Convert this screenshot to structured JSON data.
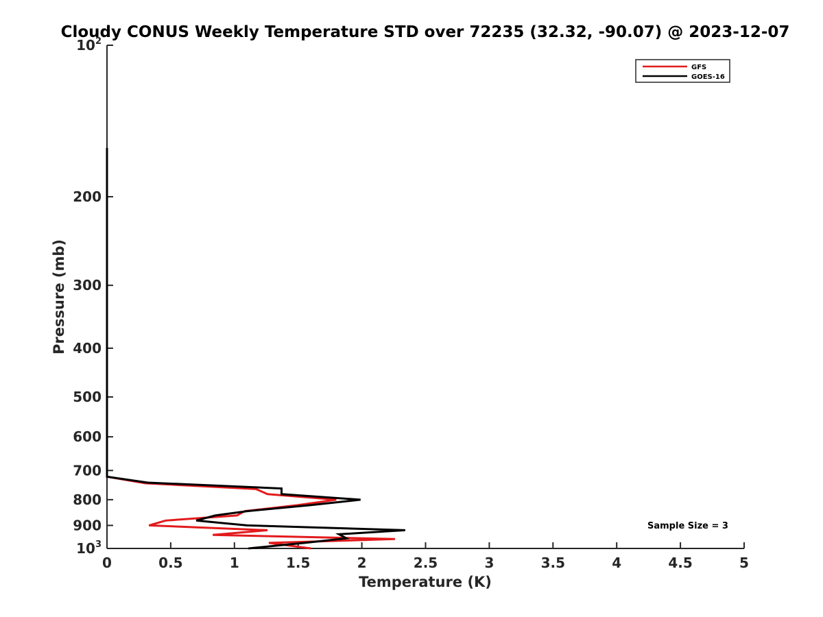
{
  "chart_data": {
    "type": "line",
    "title": "Cloudy CONUS Weekly Temperature STD over 72235 (32.32, -90.07) @ 2023-12-07",
    "xlabel": "Temperature (K)",
    "ylabel": "Pressure (mb)",
    "xlim": [
      0,
      5
    ],
    "ylim": [
      100,
      1000
    ],
    "y_scale": "log",
    "y_reversed": true,
    "grid": false,
    "legend_position": "top-right",
    "x_ticks": [
      {
        "value": 0,
        "label": "0"
      },
      {
        "value": 0.5,
        "label": "0.5"
      },
      {
        "value": 1,
        "label": "1"
      },
      {
        "value": 1.5,
        "label": "1.5"
      },
      {
        "value": 2,
        "label": "2"
      },
      {
        "value": 2.5,
        "label": "2.5"
      },
      {
        "value": 3,
        "label": "3"
      },
      {
        "value": 3.5,
        "label": "3.5"
      },
      {
        "value": 4,
        "label": "4"
      },
      {
        "value": 4.5,
        "label": "4.5"
      },
      {
        "value": 5,
        "label": "5"
      }
    ],
    "y_ticks": [
      {
        "value": 100,
        "base": "10",
        "exp": "2"
      },
      {
        "value": 200,
        "base": "200",
        "exp": ""
      },
      {
        "value": 300,
        "base": "300",
        "exp": ""
      },
      {
        "value": 400,
        "base": "400",
        "exp": ""
      },
      {
        "value": 500,
        "base": "500",
        "exp": ""
      },
      {
        "value": 600,
        "base": "600",
        "exp": ""
      },
      {
        "value": 700,
        "base": "700",
        "exp": ""
      },
      {
        "value": 800,
        "base": "800",
        "exp": ""
      },
      {
        "value": 900,
        "base": "900",
        "exp": ""
      },
      {
        "value": 1000,
        "base": "10",
        "exp": "3"
      }
    ],
    "series": [
      {
        "name": "GFS",
        "color": "#e31a1c",
        "points": [
          [
            0,
            160
          ],
          [
            0,
            720
          ],
          [
            0.3,
            742
          ],
          [
            1.17,
            762
          ],
          [
            1.26,
            780
          ],
          [
            1.8,
            800
          ],
          [
            1.5,
            820
          ],
          [
            1.08,
            843
          ],
          [
            1.02,
            860
          ],
          [
            0.46,
            880
          ],
          [
            0.33,
            900
          ],
          [
            1.26,
            920
          ],
          [
            0.83,
            940
          ],
          [
            2.26,
            958
          ],
          [
            1.27,
            975
          ],
          [
            1.6,
            1000
          ]
        ]
      },
      {
        "name": "GOES-16",
        "color": "#000000",
        "points": [
          [
            0,
            160
          ],
          [
            0,
            720
          ],
          [
            0.32,
            740
          ],
          [
            1.37,
            760
          ],
          [
            1.37,
            780
          ],
          [
            1.99,
            800
          ],
          [
            1.6,
            820
          ],
          [
            1.1,
            843
          ],
          [
            0.85,
            860
          ],
          [
            0.7,
            880
          ],
          [
            1.1,
            900
          ],
          [
            2.34,
            920
          ],
          [
            1.82,
            937
          ],
          [
            1.88,
            955
          ],
          [
            1.55,
            975
          ],
          [
            1.11,
            1000
          ]
        ]
      }
    ],
    "annotations": [
      {
        "text": "Sample Size = 3"
      }
    ]
  }
}
